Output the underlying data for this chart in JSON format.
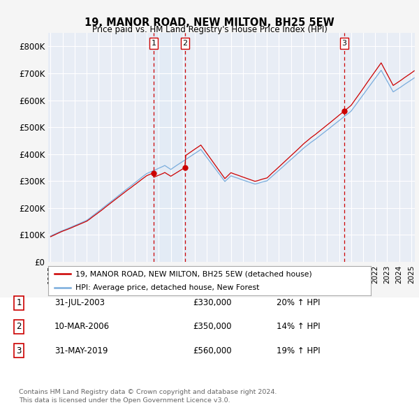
{
  "title": "19, MANOR ROAD, NEW MILTON, BH25 5EW",
  "subtitle": "Price paid vs. HM Land Registry's House Price Index (HPI)",
  "ylim": [
    0,
    850000
  ],
  "yticks": [
    0,
    100000,
    200000,
    300000,
    400000,
    500000,
    600000,
    700000,
    800000
  ],
  "ytick_labels": [
    "£0",
    "£100K",
    "£200K",
    "£300K",
    "£400K",
    "£500K",
    "£600K",
    "£700K",
    "£800K"
  ],
  "background_color": "#f5f5f5",
  "plot_bg_color": "#e8edf5",
  "grid_color": "#ffffff",
  "red_line_color": "#cc0000",
  "blue_line_color": "#7aaddd",
  "shade_color": "#dce8f5",
  "sale_marker_color": "#cc0000",
  "dashed_line_color": "#cc0000",
  "transactions": [
    {
      "label": "1",
      "date_str": "31-JUL-2003",
      "price": 330000,
      "hpi_pct": "20%",
      "x_year": 2003.58
    },
    {
      "label": "2",
      "date_str": "10-MAR-2006",
      "price": 350000,
      "hpi_pct": "14%",
      "x_year": 2006.19
    },
    {
      "label": "3",
      "date_str": "31-MAY-2019",
      "price": 560000,
      "hpi_pct": "19%",
      "x_year": 2019.42
    }
  ],
  "legend_label_red": "19, MANOR ROAD, NEW MILTON, BH25 5EW (detached house)",
  "legend_label_blue": "HPI: Average price, detached house, New Forest",
  "footer_line1": "Contains HM Land Registry data © Crown copyright and database right 2024.",
  "footer_line2": "This data is licensed under the Open Government Licence v3.0.",
  "xlim_start": 1994.8,
  "xlim_end": 2025.3
}
